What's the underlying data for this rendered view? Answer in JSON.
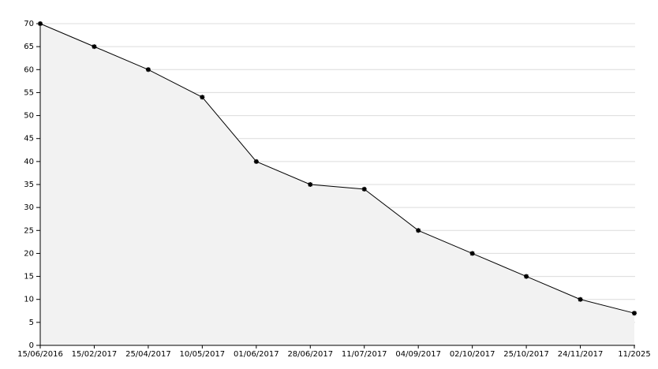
{
  "chart_data": {
    "type": "area",
    "categories": [
      "15/06/2016",
      "15/02/2017",
      "25/04/2017",
      "10/05/2017",
      "01/06/2017",
      "28/06/2017",
      "11/07/2017",
      "04/09/2017",
      "02/10/2017",
      "25/10/2017",
      "24/11/2017",
      "11/2025"
    ],
    "values": [
      70,
      65,
      60,
      54,
      40,
      35,
      34,
      25,
      20,
      15,
      10,
      7
    ],
    "color": "#000000",
    "fill": "#f2f2f2",
    "ylim": [
      0,
      70
    ],
    "yticks": [
      0,
      5,
      10,
      15,
      20,
      25,
      30,
      35,
      40,
      45,
      50,
      55,
      60,
      65,
      70
    ],
    "grid": true
  }
}
